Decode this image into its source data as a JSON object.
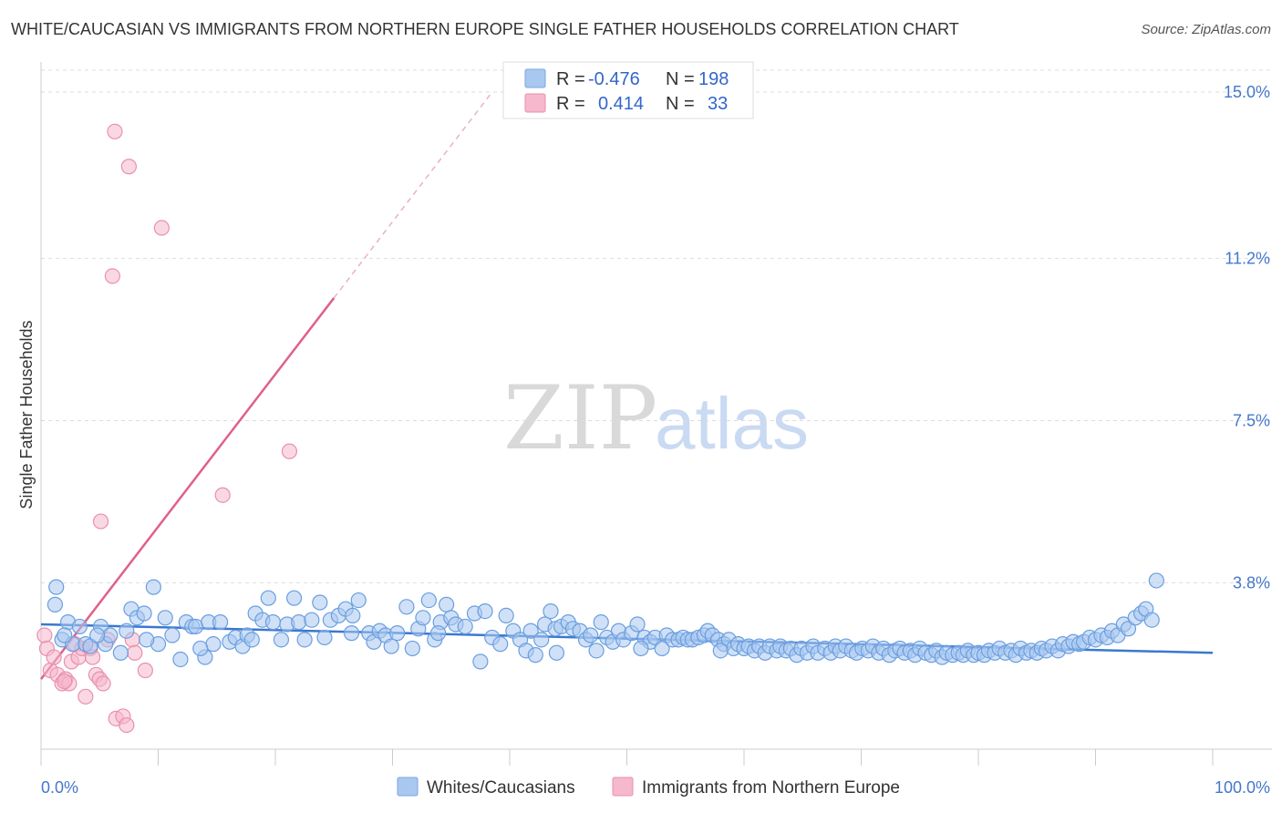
{
  "title": "WHITE/CAUCASIAN VS IMMIGRANTS FROM NORTHERN EUROPE SINGLE FATHER HOUSEHOLDS CORRELATION CHART",
  "source": "Source: ZipAtlas.com",
  "watermark": {
    "zip": "ZIP",
    "atlas": "atlas"
  },
  "legend": {
    "rows": [
      {
        "r_label": "R =",
        "r_value": "-0.476",
        "n_label": "N =",
        "n_value": "198",
        "color": "#a9c8f0"
      },
      {
        "r_label": "R =",
        "r_value": "0.414",
        "n_label": "N =",
        "n_value": "33",
        "color": "#f5b8cc"
      }
    ]
  },
  "chart_data": {
    "type": "scatter",
    "ylabel": "Single Father Households",
    "xlim": [
      0,
      100
    ],
    "ylim": [
      0,
      15.5
    ],
    "x_tick_labels": [
      "0.0%",
      "100.0%"
    ],
    "y_ticks": [
      {
        "value": 3.8,
        "label": "3.8%"
      },
      {
        "value": 7.5,
        "label": "7.5%"
      },
      {
        "value": 11.2,
        "label": "11.2%"
      },
      {
        "value": 15.0,
        "label": "15.0%"
      }
    ],
    "colors": {
      "blue": "#3a78d0",
      "blue_fill": "#a9c8f0",
      "pink": "#e0608a",
      "pink_fill": "#f5b8cc",
      "grid": "#dddddd"
    },
    "series": [
      {
        "name": "Whites/Caucasians",
        "trend": {
          "x": [
            0,
            100
          ],
          "y": [
            2.85,
            2.2
          ]
        },
        "points": [
          [
            1.2,
            3.3
          ],
          [
            1.3,
            3.7
          ],
          [
            1.8,
            2.5
          ],
          [
            2.3,
            2.9
          ],
          [
            2.7,
            2.4
          ],
          [
            3.3,
            2.8
          ],
          [
            3.8,
            2.4
          ],
          [
            4.2,
            2.35
          ],
          [
            5.1,
            2.8
          ],
          [
            5.5,
            2.4
          ],
          [
            5.9,
            2.6
          ],
          [
            6.8,
            2.2
          ],
          [
            7.3,
            2.7
          ],
          [
            7.7,
            3.2
          ],
          [
            8.2,
            3.0
          ],
          [
            8.8,
            3.1
          ],
          [
            9.6,
            3.7
          ],
          [
            10.0,
            2.4
          ],
          [
            10.6,
            3.0
          ],
          [
            11.2,
            2.6
          ],
          [
            11.9,
            2.05
          ],
          [
            12.4,
            2.9
          ],
          [
            12.9,
            2.8
          ],
          [
            13.2,
            2.8
          ],
          [
            14.0,
            2.1
          ],
          [
            14.3,
            2.9
          ],
          [
            14.7,
            2.4
          ],
          [
            15.3,
            2.9
          ],
          [
            16.1,
            2.45
          ],
          [
            16.6,
            2.55
          ],
          [
            17.2,
            2.35
          ],
          [
            17.6,
            2.6
          ],
          [
            18.3,
            3.1
          ],
          [
            18.9,
            2.95
          ],
          [
            19.4,
            3.45
          ],
          [
            19.8,
            2.9
          ],
          [
            20.5,
            2.5
          ],
          [
            21.0,
            2.85
          ],
          [
            21.6,
            3.45
          ],
          [
            22.0,
            2.9
          ],
          [
            22.5,
            2.5
          ],
          [
            23.1,
            2.95
          ],
          [
            23.8,
            3.35
          ],
          [
            24.2,
            2.55
          ],
          [
            24.7,
            2.95
          ],
          [
            25.4,
            3.05
          ],
          [
            26.0,
            3.2
          ],
          [
            26.6,
            3.05
          ],
          [
            27.1,
            3.4
          ],
          [
            28.0,
            2.65
          ],
          [
            28.4,
            2.45
          ],
          [
            28.9,
            2.7
          ],
          [
            29.4,
            2.6
          ],
          [
            29.9,
            2.35
          ],
          [
            30.4,
            2.65
          ],
          [
            31.2,
            3.25
          ],
          [
            31.7,
            2.3
          ],
          [
            32.2,
            2.75
          ],
          [
            32.6,
            3.0
          ],
          [
            33.1,
            3.4
          ],
          [
            33.6,
            2.5
          ],
          [
            34.1,
            2.9
          ],
          [
            34.6,
            3.3
          ],
          [
            35.0,
            3.0
          ],
          [
            35.4,
            2.85
          ],
          [
            36.2,
            2.8
          ],
          [
            37.0,
            3.1
          ],
          [
            37.5,
            2.0
          ],
          [
            37.9,
            3.15
          ],
          [
            38.5,
            2.55
          ],
          [
            39.2,
            2.4
          ],
          [
            39.7,
            3.05
          ],
          [
            40.3,
            2.7
          ],
          [
            40.9,
            2.5
          ],
          [
            41.4,
            2.25
          ],
          [
            41.8,
            2.7
          ],
          [
            42.2,
            2.15
          ],
          [
            42.7,
            2.5
          ],
          [
            43.0,
            2.85
          ],
          [
            43.5,
            3.15
          ],
          [
            43.9,
            2.75
          ],
          [
            44.4,
            2.8
          ],
          [
            45.0,
            2.9
          ],
          [
            45.4,
            2.75
          ],
          [
            46.0,
            2.7
          ],
          [
            46.5,
            2.5
          ],
          [
            46.9,
            2.6
          ],
          [
            47.4,
            2.25
          ],
          [
            47.8,
            2.9
          ],
          [
            48.3,
            2.55
          ],
          [
            48.8,
            2.45
          ],
          [
            49.3,
            2.7
          ],
          [
            49.7,
            2.5
          ],
          [
            50.4,
            2.65
          ],
          [
            50.9,
            2.85
          ],
          [
            51.5,
            2.55
          ],
          [
            52.0,
            2.45
          ],
          [
            52.4,
            2.55
          ],
          [
            53.0,
            2.3
          ],
          [
            53.4,
            2.6
          ],
          [
            53.9,
            2.5
          ],
          [
            54.4,
            2.5
          ],
          [
            54.8,
            2.55
          ],
          [
            55.2,
            2.5
          ],
          [
            55.6,
            2.5
          ],
          [
            56.1,
            2.55
          ],
          [
            56.6,
            2.6
          ],
          [
            56.9,
            2.7
          ],
          [
            57.3,
            2.6
          ],
          [
            57.8,
            2.5
          ],
          [
            58.3,
            2.4
          ],
          [
            58.7,
            2.5
          ],
          [
            59.1,
            2.3
          ],
          [
            59.5,
            2.4
          ],
          [
            60.0,
            2.3
          ],
          [
            60.4,
            2.35
          ],
          [
            60.9,
            2.25
          ],
          [
            61.3,
            2.35
          ],
          [
            61.8,
            2.2
          ],
          [
            62.2,
            2.35
          ],
          [
            62.8,
            2.25
          ],
          [
            63.1,
            2.35
          ],
          [
            63.6,
            2.25
          ],
          [
            64.0,
            2.3
          ],
          [
            64.5,
            2.15
          ],
          [
            64.9,
            2.3
          ],
          [
            65.4,
            2.2
          ],
          [
            65.9,
            2.35
          ],
          [
            66.3,
            2.2
          ],
          [
            66.9,
            2.3
          ],
          [
            67.4,
            2.2
          ],
          [
            67.8,
            2.35
          ],
          [
            68.2,
            2.25
          ],
          [
            68.7,
            2.35
          ],
          [
            69.2,
            2.25
          ],
          [
            69.6,
            2.2
          ],
          [
            70.1,
            2.3
          ],
          [
            70.6,
            2.25
          ],
          [
            71.0,
            2.35
          ],
          [
            71.5,
            2.2
          ],
          [
            71.9,
            2.3
          ],
          [
            72.4,
            2.15
          ],
          [
            72.9,
            2.25
          ],
          [
            73.3,
            2.3
          ],
          [
            73.7,
            2.2
          ],
          [
            74.2,
            2.25
          ],
          [
            74.6,
            2.15
          ],
          [
            75.0,
            2.3
          ],
          [
            75.5,
            2.2
          ],
          [
            76.0,
            2.15
          ],
          [
            76.4,
            2.25
          ],
          [
            76.9,
            2.1
          ],
          [
            77.3,
            2.2
          ],
          [
            77.8,
            2.15
          ],
          [
            78.3,
            2.2
          ],
          [
            78.7,
            2.15
          ],
          [
            79.1,
            2.25
          ],
          [
            79.6,
            2.15
          ],
          [
            80.0,
            2.2
          ],
          [
            80.5,
            2.15
          ],
          [
            80.9,
            2.25
          ],
          [
            81.4,
            2.2
          ],
          [
            81.8,
            2.3
          ],
          [
            82.3,
            2.2
          ],
          [
            82.8,
            2.25
          ],
          [
            83.2,
            2.15
          ],
          [
            83.6,
            2.3
          ],
          [
            84.1,
            2.2
          ],
          [
            84.5,
            2.25
          ],
          [
            85.0,
            2.2
          ],
          [
            85.4,
            2.3
          ],
          [
            85.8,
            2.25
          ],
          [
            86.3,
            2.35
          ],
          [
            86.8,
            2.25
          ],
          [
            87.2,
            2.4
          ],
          [
            87.7,
            2.35
          ],
          [
            88.1,
            2.45
          ],
          [
            88.6,
            2.4
          ],
          [
            89.0,
            2.45
          ],
          [
            89.5,
            2.55
          ],
          [
            90.0,
            2.5
          ],
          [
            90.5,
            2.6
          ],
          [
            91.0,
            2.55
          ],
          [
            91.4,
            2.7
          ],
          [
            91.9,
            2.6
          ],
          [
            92.4,
            2.85
          ],
          [
            92.8,
            2.75
          ],
          [
            93.4,
            3.0
          ],
          [
            93.9,
            3.1
          ],
          [
            94.3,
            3.2
          ],
          [
            94.8,
            2.95
          ],
          [
            95.2,
            3.85
          ],
          [
            2.0,
            2.6
          ],
          [
            4.8,
            2.6
          ],
          [
            9.0,
            2.5
          ],
          [
            13.6,
            2.3
          ],
          [
            18.0,
            2.5
          ],
          [
            26.5,
            2.65
          ],
          [
            33.9,
            2.65
          ],
          [
            44.0,
            2.2
          ],
          [
            51.2,
            2.3
          ],
          [
            58.0,
            2.25
          ]
        ]
      },
      {
        "name": "Immigrants from Northern Europe",
        "trend": {
          "x": [
            0,
            25
          ],
          "y": [
            1.6,
            10.3
          ]
        },
        "trend_extension": {
          "x": [
            25,
            38.5
          ],
          "y": [
            10.3,
            15.0
          ]
        },
        "points": [
          [
            0.3,
            2.6
          ],
          [
            0.5,
            2.3
          ],
          [
            0.8,
            1.8
          ],
          [
            1.1,
            2.1
          ],
          [
            1.4,
            1.7
          ],
          [
            1.8,
            1.5
          ],
          [
            2.1,
            1.6
          ],
          [
            2.4,
            1.5
          ],
          [
            2.6,
            2.0
          ],
          [
            2.9,
            2.4
          ],
          [
            3.2,
            2.1
          ],
          [
            3.5,
            2.3
          ],
          [
            3.8,
            1.2
          ],
          [
            4.2,
            2.3
          ],
          [
            4.4,
            2.1
          ],
          [
            4.7,
            1.7
          ],
          [
            5.0,
            1.6
          ],
          [
            5.3,
            1.5
          ],
          [
            5.7,
            2.5
          ],
          [
            6.4,
            0.7
          ],
          [
            7.0,
            0.75
          ],
          [
            7.3,
            0.55
          ],
          [
            7.8,
            2.5
          ],
          [
            8.0,
            2.2
          ],
          [
            8.9,
            1.8
          ],
          [
            5.1,
            5.2
          ],
          [
            6.1,
            10.8
          ],
          [
            6.3,
            14.1
          ],
          [
            7.5,
            13.3
          ],
          [
            10.3,
            11.9
          ],
          [
            15.5,
            5.8
          ],
          [
            21.2,
            6.8
          ],
          [
            2.0,
            1.55
          ]
        ]
      }
    ]
  }
}
